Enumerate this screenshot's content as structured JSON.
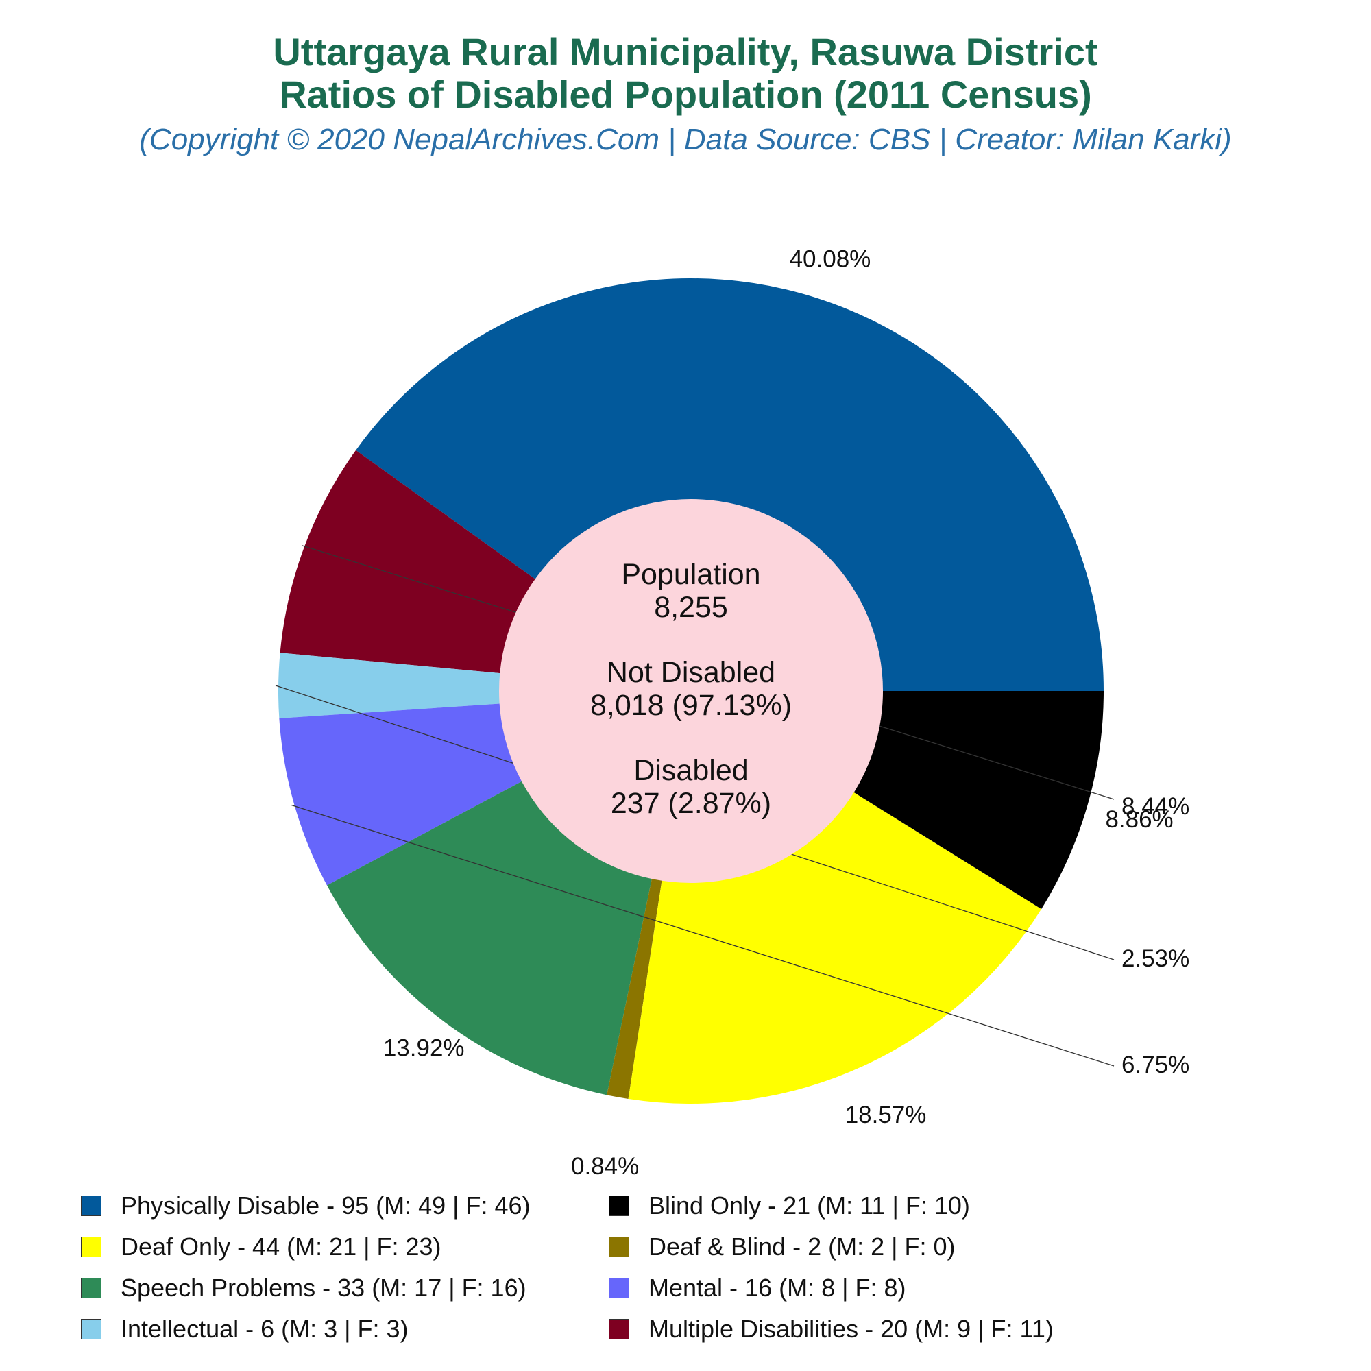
{
  "header": {
    "title_line1": "Uttargaya Rural Municipality, Rasuwa District",
    "title_line2": "Ratios of Disabled Population (2011 Census)",
    "subtitle": "(Copyright © 2020 NepalArchives.Com | Data Source: CBS | Creator: Milan Karki)"
  },
  "center": {
    "population_label": "Population",
    "population_value": "8,255",
    "not_disabled_label": "Not Disabled",
    "not_disabled_value": "8,018 (97.13%)",
    "disabled_label": "Disabled",
    "disabled_value": "237 (2.87%)",
    "fill": "#fcd5dc"
  },
  "chart_data": {
    "type": "pie",
    "title": "Ratios of Disabled Population (2011 Census)",
    "slices": [
      {
        "name": "Physically Disable",
        "value": 95,
        "male": 49,
        "female": 46,
        "percent_label": "40.08%",
        "color": "#02599b",
        "legend": "Physically Disable - 95 (M: 49 | F: 46)"
      },
      {
        "name": "Multiple Disabilities",
        "value": 20,
        "male": 9,
        "female": 11,
        "percent_label": "8.44%",
        "color": "#7e0021",
        "legend": "Multiple Disabilities - 20 (M: 9 | F: 11)"
      },
      {
        "name": "Intellectual",
        "value": 6,
        "male": 3,
        "female": 3,
        "percent_label": "2.53%",
        "color": "#87ceeb",
        "legend": "Intellectual - 6 (M: 3 | F: 3)"
      },
      {
        "name": "Mental",
        "value": 16,
        "male": 8,
        "female": 8,
        "percent_label": "6.75%",
        "color": "#6666fb",
        "legend": "Mental - 16 (M: 8 | F: 8)"
      },
      {
        "name": "Speech Problems",
        "value": 33,
        "male": 17,
        "female": 16,
        "percent_label": "13.92%",
        "color": "#2e8b57",
        "legend": "Speech Problems - 33 (M: 17 | F: 16)"
      },
      {
        "name": "Deaf & Blind",
        "value": 2,
        "male": 2,
        "female": 0,
        "percent_label": "0.84%",
        "color": "#8b7500",
        "legend": "Deaf & Blind - 2 (M: 2 | F: 0)"
      },
      {
        "name": "Deaf Only",
        "value": 44,
        "male": 21,
        "female": 23,
        "percent_label": "18.57%",
        "color": "#ffff00",
        "legend": "Deaf Only - 44 (M: 21 | F: 23)"
      },
      {
        "name": "Blind Only",
        "value": 21,
        "male": 11,
        "female": 10,
        "percent_label": "8.86%",
        "color": "#000000",
        "legend": "Blind Only - 21 (M: 11 | F: 10)"
      }
    ],
    "legend_order": [
      "Physically Disable",
      "Blind Only",
      "Deaf Only",
      "Deaf & Blind",
      "Speech Problems",
      "Mental",
      "Intellectual",
      "Multiple Disabilities"
    ],
    "legend_position": "bottom"
  }
}
